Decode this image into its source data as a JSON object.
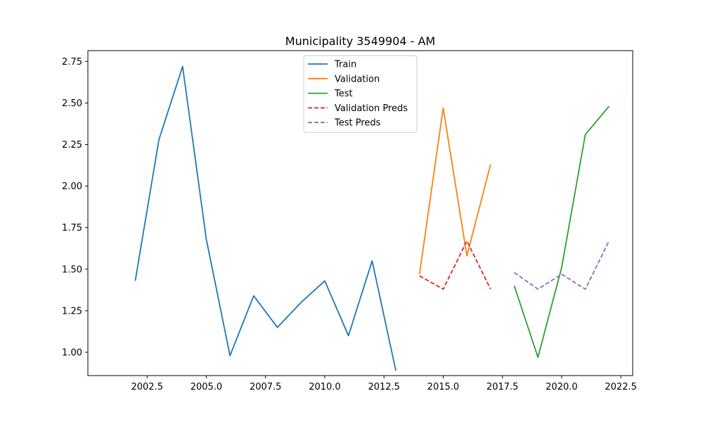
{
  "chart_data": {
    "type": "line",
    "title": "Municipality 3549904 - AM",
    "xlabel": "",
    "ylabel": "",
    "xlim": [
      2000.0,
      2023.0
    ],
    "ylim": [
      0.86,
      2.815
    ],
    "x_ticks": [
      2002.5,
      2005.0,
      2007.5,
      2010.0,
      2012.5,
      2015.0,
      2017.5,
      2020.0,
      2022.5
    ],
    "x_tick_labels": [
      "2002.5",
      "2005.0",
      "2007.5",
      "2010.0",
      "2012.5",
      "2015.0",
      "2017.5",
      "2020.0",
      "2022.5"
    ],
    "y_ticks": [
      1.0,
      1.25,
      1.5,
      1.75,
      2.0,
      2.25,
      2.5,
      2.75
    ],
    "y_tick_labels": [
      "1.00",
      "1.25",
      "1.50",
      "1.75",
      "2.00",
      "2.25",
      "2.50",
      "2.75"
    ],
    "grid": false,
    "legend_position": "top-center",
    "series": [
      {
        "name": "Train",
        "color": "#1f77b4",
        "style": "solid",
        "x": [
          2002,
          2003,
          2004,
          2005,
          2006,
          2007,
          2008,
          2009,
          2010,
          2011,
          2012,
          2013
        ],
        "y": [
          1.43,
          2.28,
          2.72,
          1.68,
          0.98,
          1.34,
          1.15,
          1.3,
          1.43,
          1.1,
          1.55,
          0.89
        ]
      },
      {
        "name": "Validation",
        "color": "#ff7f0e",
        "style": "solid",
        "x": [
          2014,
          2015,
          2016,
          2017
        ],
        "y": [
          1.47,
          2.47,
          1.58,
          2.13
        ]
      },
      {
        "name": "Test",
        "color": "#2ca02c",
        "style": "solid",
        "x": [
          2018,
          2019,
          2020,
          2021,
          2022
        ],
        "y": [
          1.4,
          0.97,
          1.51,
          2.31,
          2.48
        ]
      },
      {
        "name": "Validation Preds",
        "color": "#d62728",
        "style": "dashed",
        "x": [
          2014,
          2015,
          2016,
          2017
        ],
        "y": [
          1.46,
          1.38,
          1.67,
          1.38
        ]
      },
      {
        "name": "Test Preds",
        "color": "#9467bd",
        "style": "dashed",
        "x": [
          2018,
          2019,
          2020,
          2021,
          2022
        ],
        "y": [
          1.48,
          1.38,
          1.47,
          1.38,
          1.67
        ]
      }
    ]
  }
}
